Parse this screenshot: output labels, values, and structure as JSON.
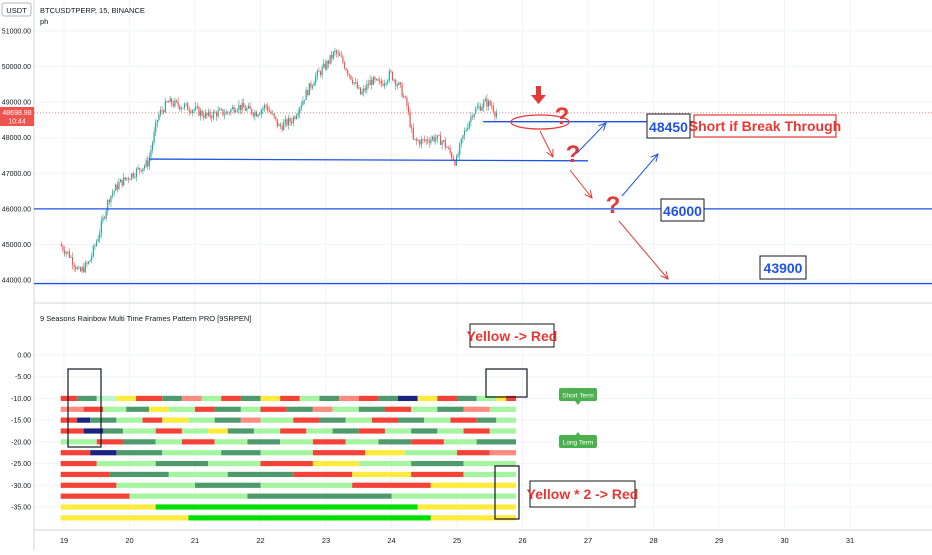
{
  "header": {
    "currency_badge": "USDT",
    "symbol_line": "BTCUSDTPERP, 15, BINANCE",
    "author_line": "ph"
  },
  "price_label": {
    "value": "48698.98",
    "countdown": "10:44"
  },
  "indicator_title": "9 Seasons Rainbow Multi Time Frames Pattern PRO [9SRPEN]",
  "annotations": {
    "short_box": "Short if Break  Through",
    "yellow_red": "Yellow -> Red",
    "yellow2_red": "Yellow * 2 -> Red",
    "level_48450": "48450",
    "level_46000": "46000",
    "level_43900": "43900",
    "short_term_tag": "Short Term",
    "long_term_tag": "Long Term"
  },
  "colors": {
    "up": "#26a69a",
    "down": "#ef5350",
    "level_line": "#1e53e5",
    "annotation_red": "#e53935",
    "tag_green": "#4caf50",
    "band_palette": [
      "#f44336",
      "#ff8a80",
      "#ffeb3b",
      "#b9f6ca",
      "#a5f5a0",
      "#4e9a6c",
      "#1a237e",
      "#00e000",
      "#c8e66a"
    ]
  },
  "chart_data": [
    {
      "type": "candlestick",
      "ylim": [
        43800,
        51300
      ],
      "y_ticks": [
        "51000.00",
        "50000.00",
        "49000.00",
        "48000.00",
        "47000.00",
        "46000.00",
        "45000.00",
        "44000.00"
      ],
      "x_ticks": [
        "19",
        "20",
        "21",
        "22",
        "23",
        "24",
        "25",
        "26",
        "27",
        "28",
        "29",
        "30",
        "31"
      ],
      "series_path": [
        [
          18.95,
          45000
        ],
        [
          19.1,
          44700
        ],
        [
          19.25,
          44200
        ],
        [
          19.4,
          44500
        ],
        [
          19.55,
          45300
        ],
        [
          19.7,
          46300
        ],
        [
          19.85,
          46700
        ],
        [
          20.0,
          46900
        ],
        [
          20.15,
          47100
        ],
        [
          20.3,
          47300
        ],
        [
          20.45,
          48600
        ],
        [
          20.6,
          49000
        ],
        [
          20.8,
          48900
        ],
        [
          21.0,
          48800
        ],
        [
          21.2,
          48600
        ],
        [
          21.35,
          48700
        ],
        [
          21.5,
          48700
        ],
        [
          21.65,
          48900
        ],
        [
          21.8,
          48800
        ],
        [
          21.95,
          48700
        ],
        [
          22.1,
          48900
        ],
        [
          22.3,
          48300
        ],
        [
          22.5,
          48500
        ],
        [
          22.7,
          49200
        ],
        [
          22.85,
          49700
        ],
        [
          23.0,
          50000
        ],
        [
          23.15,
          50400
        ],
        [
          23.25,
          50200
        ],
        [
          23.4,
          49700
        ],
        [
          23.55,
          49200
        ],
        [
          23.7,
          49600
        ],
        [
          23.85,
          49500
        ],
        [
          24.0,
          49800
        ],
        [
          24.15,
          49400
        ],
        [
          24.25,
          48900
        ],
        [
          24.35,
          47900
        ],
        [
          24.5,
          47900
        ],
        [
          24.65,
          48000
        ],
        [
          24.8,
          47900
        ],
        [
          25.0,
          47300
        ],
        [
          25.1,
          48000
        ],
        [
          25.25,
          48700
        ],
        [
          25.45,
          49000
        ],
        [
          25.55,
          48900
        ],
        [
          25.6,
          48700
        ]
      ],
      "last_price": 48698.98,
      "levels": [
        48450,
        47400,
        46000,
        43900
      ]
    },
    {
      "type": "heatmap",
      "title": "9 Seasons Rainbow Multi Time Frames Pattern PRO [9SRPEN]",
      "ylim": [
        -38,
        2
      ],
      "y_ticks": [
        "0.00",
        "-5.00",
        "-10.00",
        "-15.00",
        "-20.00",
        "-25.00",
        "-30.00",
        "-35.00"
      ],
      "row_values": [
        -10,
        -12.5,
        -15,
        -17.5,
        -20,
        -22.5,
        -25,
        -27.5,
        -30,
        -32.5,
        -35,
        -37.5
      ],
      "x_range": [
        18.95,
        25.9
      ],
      "rows": [
        {
          "y": -10.0,
          "segments": [
            [
              18.95,
              19.2,
              0
            ],
            [
              19.2,
              19.5,
              5
            ],
            [
              19.5,
              19.8,
              3
            ],
            [
              19.8,
              20.1,
              2
            ],
            [
              20.1,
              20.5,
              0
            ],
            [
              20.5,
              20.8,
              5
            ],
            [
              20.8,
              21.1,
              1
            ],
            [
              21.1,
              21.4,
              4
            ],
            [
              21.4,
              21.7,
              0
            ],
            [
              21.7,
              22.0,
              5
            ],
            [
              22.0,
              22.3,
              2
            ],
            [
              22.3,
              22.6,
              0
            ],
            [
              22.6,
              22.9,
              4
            ],
            [
              22.9,
              23.2,
              5
            ],
            [
              23.2,
              23.5,
              1
            ],
            [
              23.5,
              23.8,
              0
            ],
            [
              23.8,
              24.1,
              5
            ],
            [
              24.1,
              24.4,
              6
            ],
            [
              24.4,
              24.7,
              2
            ],
            [
              24.7,
              25.0,
              0
            ],
            [
              25.0,
              25.3,
              5
            ],
            [
              25.3,
              25.6,
              4
            ],
            [
              25.6,
              25.75,
              2
            ],
            [
              25.75,
              25.9,
              0
            ]
          ]
        },
        {
          "y": -12.5,
          "segments": [
            [
              18.95,
              19.3,
              1
            ],
            [
              19.3,
              19.6,
              0
            ],
            [
              19.6,
              19.95,
              4
            ],
            [
              19.95,
              20.3,
              5
            ],
            [
              20.3,
              20.6,
              2
            ],
            [
              20.6,
              21.0,
              4
            ],
            [
              21.0,
              21.3,
              0
            ],
            [
              21.3,
              21.7,
              5
            ],
            [
              21.7,
              22.0,
              4
            ],
            [
              22.0,
              22.4,
              0
            ],
            [
              22.4,
              22.8,
              5
            ],
            [
              22.8,
              23.1,
              1
            ],
            [
              23.1,
              23.5,
              4
            ],
            [
              23.5,
              23.9,
              5
            ],
            [
              23.9,
              24.3,
              0
            ],
            [
              24.3,
              24.7,
              4
            ],
            [
              24.7,
              25.1,
              5
            ],
            [
              25.1,
              25.5,
              1
            ],
            [
              25.5,
              25.9,
              4
            ]
          ]
        },
        {
          "y": -15.0,
          "segments": [
            [
              18.95,
              19.2,
              0
            ],
            [
              19.2,
              19.4,
              6
            ],
            [
              19.4,
              19.8,
              5
            ],
            [
              19.8,
              20.2,
              4
            ],
            [
              20.2,
              20.5,
              0
            ],
            [
              20.5,
              20.9,
              2
            ],
            [
              20.9,
              21.3,
              4
            ],
            [
              21.3,
              21.7,
              5
            ],
            [
              21.7,
              22.0,
              1
            ],
            [
              22.0,
              22.5,
              4
            ],
            [
              22.5,
              22.9,
              0
            ],
            [
              22.9,
              23.3,
              5
            ],
            [
              23.3,
              23.7,
              4
            ],
            [
              23.7,
              24.1,
              0
            ],
            [
              24.1,
              24.5,
              5
            ],
            [
              24.5,
              24.9,
              4
            ],
            [
              24.9,
              25.3,
              0
            ],
            [
              25.3,
              25.6,
              5
            ],
            [
              25.6,
              25.9,
              4
            ]
          ]
        },
        {
          "y": -17.5,
          "segments": [
            [
              18.95,
              19.3,
              0
            ],
            [
              19.3,
              19.6,
              6
            ],
            [
              19.6,
              19.9,
              5
            ],
            [
              19.9,
              20.4,
              4
            ],
            [
              20.4,
              20.8,
              0
            ],
            [
              20.8,
              21.2,
              4
            ],
            [
              21.2,
              21.5,
              2
            ],
            [
              21.5,
              21.9,
              5
            ],
            [
              21.9,
              22.3,
              4
            ],
            [
              22.3,
              22.7,
              0
            ],
            [
              22.7,
              23.1,
              4
            ],
            [
              23.1,
              23.5,
              5
            ],
            [
              23.5,
              23.9,
              0
            ],
            [
              23.9,
              24.3,
              4
            ],
            [
              24.3,
              24.7,
              5
            ],
            [
              24.7,
              25.1,
              4
            ],
            [
              25.1,
              25.5,
              0
            ],
            [
              25.5,
              25.9,
              4
            ]
          ]
        },
        {
          "y": -20.0,
          "segments": [
            [
              18.95,
              19.5,
              4
            ],
            [
              19.5,
              19.9,
              0
            ],
            [
              19.9,
              20.4,
              5
            ],
            [
              20.4,
              20.8,
              4
            ],
            [
              20.8,
              21.3,
              0
            ],
            [
              21.3,
              21.8,
              4
            ],
            [
              21.8,
              22.3,
              5
            ],
            [
              22.3,
              22.8,
              4
            ],
            [
              22.8,
              23.3,
              0
            ],
            [
              23.3,
              23.8,
              4
            ],
            [
              23.8,
              24.3,
              5
            ],
            [
              24.3,
              24.8,
              0
            ],
            [
              24.8,
              25.3,
              4
            ],
            [
              25.3,
              25.9,
              5
            ]
          ]
        },
        {
          "y": -22.5,
          "segments": [
            [
              18.95,
              19.4,
              0
            ],
            [
              19.4,
              19.8,
              6
            ],
            [
              19.8,
              20.5,
              5
            ],
            [
              20.5,
              21.4,
              4
            ],
            [
              21.4,
              22.0,
              5
            ],
            [
              22.0,
              22.8,
              4
            ],
            [
              22.8,
              23.6,
              0
            ],
            [
              23.6,
              24.2,
              2
            ],
            [
              24.2,
              25.0,
              4
            ],
            [
              25.0,
              25.5,
              0
            ],
            [
              25.5,
              25.9,
              1
            ]
          ]
        },
        {
          "y": -25.0,
          "segments": [
            [
              18.95,
              19.5,
              0
            ],
            [
              19.5,
              20.4,
              4
            ],
            [
              20.4,
              21.2,
              5
            ],
            [
              21.2,
              22.0,
              4
            ],
            [
              22.0,
              22.8,
              0
            ],
            [
              22.8,
              23.5,
              2
            ],
            [
              23.5,
              24.3,
              4
            ],
            [
              24.3,
              25.1,
              5
            ],
            [
              25.1,
              25.9,
              4
            ]
          ]
        },
        {
          "y": -27.5,
          "segments": [
            [
              18.95,
              19.7,
              0
            ],
            [
              19.7,
              20.6,
              5
            ],
            [
              20.6,
              21.5,
              4
            ],
            [
              21.5,
              22.5,
              5
            ],
            [
              22.5,
              23.4,
              0
            ],
            [
              23.4,
              24.3,
              2
            ],
            [
              24.3,
              25.1,
              0
            ],
            [
              25.1,
              25.9,
              4
            ]
          ]
        },
        {
          "y": -30.0,
          "segments": [
            [
              18.95,
              19.8,
              0
            ],
            [
              19.8,
              21.0,
              4
            ],
            [
              21.0,
              22.0,
              5
            ],
            [
              22.0,
              23.4,
              4
            ],
            [
              23.4,
              24.6,
              0
            ],
            [
              24.6,
              25.9,
              2
            ]
          ]
        },
        {
          "y": -32.5,
          "segments": [
            [
              18.95,
              20.0,
              0
            ],
            [
              20.0,
              21.8,
              4
            ],
            [
              21.8,
              24.0,
              5
            ],
            [
              24.0,
              25.9,
              4
            ]
          ]
        },
        {
          "y": -35.0,
          "segments": [
            [
              18.95,
              20.4,
              2
            ],
            [
              20.4,
              24.4,
              7
            ],
            [
              24.4,
              25.9,
              2
            ]
          ]
        },
        {
          "y": -37.5,
          "segments": [
            [
              18.95,
              20.9,
              2
            ],
            [
              20.9,
              24.6,
              7
            ],
            [
              24.6,
              25.9,
              2
            ]
          ]
        }
      ]
    }
  ]
}
